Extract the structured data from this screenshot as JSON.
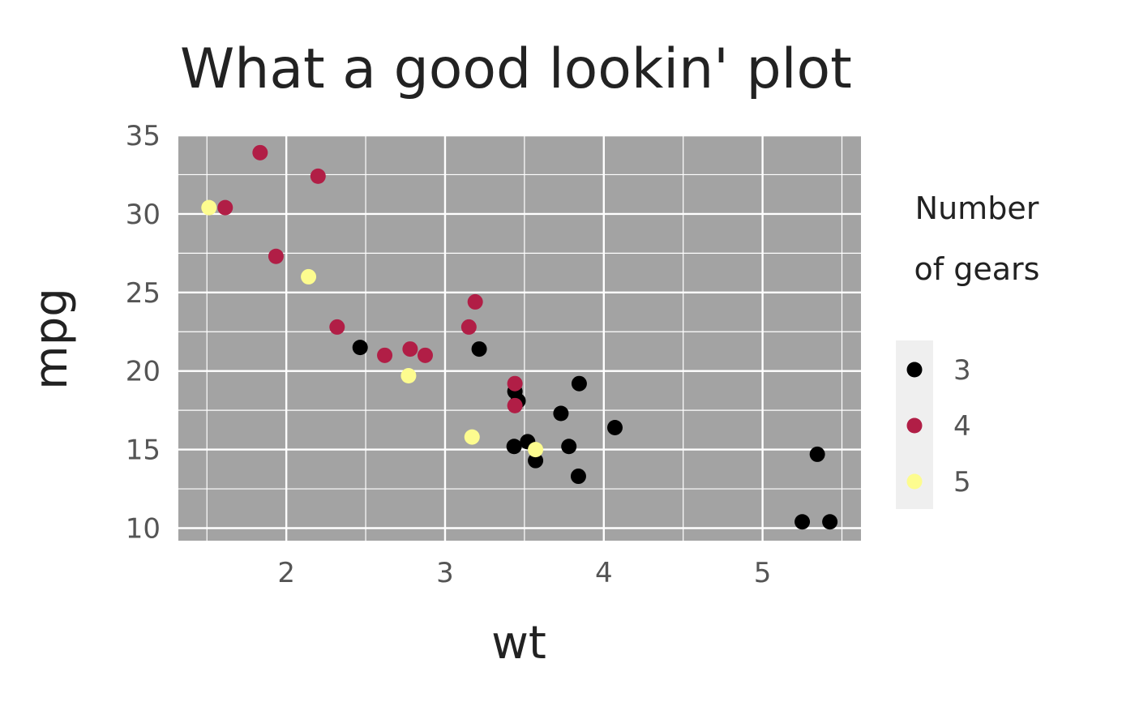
{
  "chart_data": {
    "type": "scatter",
    "title": "What a good lookin' plot",
    "xlabel": "wt",
    "ylabel": "mpg",
    "xlim": [
      1.32,
      5.62
    ],
    "ylim": [
      9.2,
      35.0
    ],
    "x_ticks": [
      2,
      3,
      4,
      5
    ],
    "y_ticks": [
      10,
      15,
      20,
      25,
      30,
      35
    ],
    "grid": true,
    "legend": {
      "title_lines": [
        "Number",
        "of gears"
      ],
      "placement": "right"
    },
    "series": [
      {
        "name": "3",
        "color": "#000000",
        "points": [
          [
            2.465,
            21.5
          ],
          [
            3.215,
            21.4
          ],
          [
            3.44,
            18.7
          ],
          [
            3.46,
            18.1
          ],
          [
            3.57,
            14.3
          ],
          [
            4.07,
            16.4
          ],
          [
            3.73,
            17.3
          ],
          [
            3.78,
            15.2
          ],
          [
            5.25,
            10.4
          ],
          [
            5.424,
            10.4
          ],
          [
            5.345,
            14.7
          ],
          [
            3.52,
            15.5
          ],
          [
            3.435,
            15.2
          ],
          [
            3.84,
            13.3
          ],
          [
            3.845,
            19.2
          ]
        ]
      },
      {
        "name": "4",
        "color": "#b11e46",
        "points": [
          [
            2.62,
            21.0
          ],
          [
            2.875,
            21.0
          ],
          [
            2.32,
            22.8
          ],
          [
            3.19,
            24.4
          ],
          [
            3.15,
            22.8
          ],
          [
            3.44,
            19.2
          ],
          [
            3.44,
            17.8
          ],
          [
            2.2,
            32.4
          ],
          [
            1.615,
            30.4
          ],
          [
            1.835,
            33.9
          ],
          [
            1.935,
            27.3
          ],
          [
            2.78,
            21.4
          ]
        ]
      },
      {
        "name": "5",
        "color": "#fdfc8f",
        "points": [
          [
            2.14,
            26.0
          ],
          [
            1.513,
            30.4
          ],
          [
            3.17,
            15.8
          ],
          [
            2.77,
            19.7
          ],
          [
            3.57,
            15.0
          ]
        ]
      }
    ]
  }
}
